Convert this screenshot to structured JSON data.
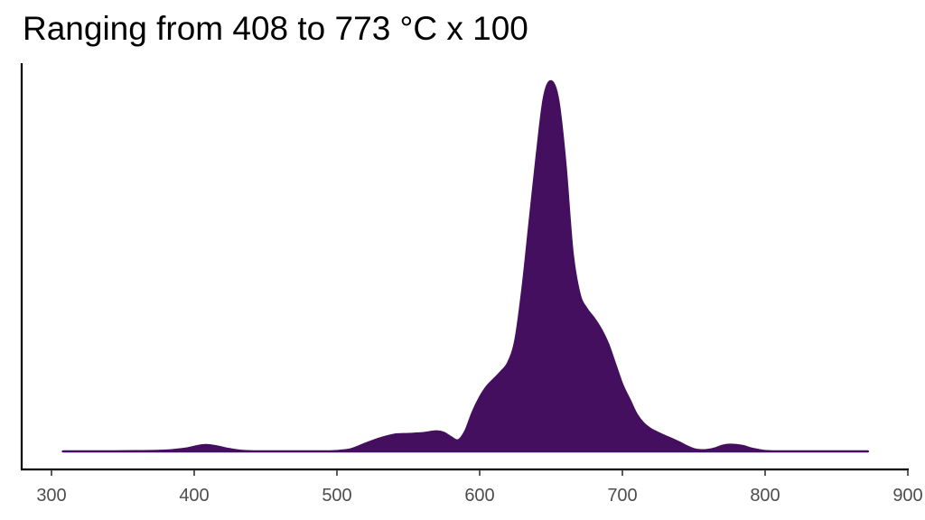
{
  "chart_data": {
    "type": "area",
    "subtype": "density",
    "title": "Ranging from 408 to 773 °C x 100",
    "xlabel": "",
    "ylabel": "",
    "xlim": [
      300,
      900
    ],
    "xticks": [
      300,
      400,
      500,
      600,
      700,
      800,
      900
    ],
    "y_axis_ticks_shown": false,
    "grid": false,
    "legend": "none",
    "fill_color": "#440F5E",
    "axis_color": "#000000",
    "series": [
      {
        "x": [
          308,
          320,
          340,
          360,
          380,
          395,
          402,
          408,
          415,
          425,
          435,
          450,
          470,
          490,
          500,
          510,
          520,
          530,
          540,
          550,
          560,
          565,
          570,
          575,
          580,
          585,
          590,
          595,
          600,
          605,
          610,
          615,
          620,
          625,
          630,
          635,
          640,
          645,
          650,
          655,
          660,
          665,
          670,
          675,
          680,
          685,
          690,
          695,
          700,
          705,
          710,
          715,
          720,
          725,
          730,
          735,
          740,
          745,
          750,
          755,
          760,
          765,
          770,
          775,
          780,
          785,
          790,
          795,
          800,
          810,
          820,
          840,
          860,
          872
        ],
        "y": [
          0.0,
          0.0,
          0.0,
          0.0005,
          0.002,
          0.008,
          0.014,
          0.017,
          0.014,
          0.006,
          0.001,
          0.0,
          0.0,
          0.0,
          0.001,
          0.006,
          0.021,
          0.035,
          0.045,
          0.047,
          0.049,
          0.052,
          0.054,
          0.05,
          0.038,
          0.03,
          0.055,
          0.105,
          0.145,
          0.175,
          0.195,
          0.215,
          0.24,
          0.3,
          0.44,
          0.62,
          0.8,
          0.955,
          1.0,
          0.95,
          0.78,
          0.54,
          0.425,
          0.385,
          0.36,
          0.33,
          0.29,
          0.235,
          0.18,
          0.14,
          0.1,
          0.075,
          0.06,
          0.05,
          0.041,
          0.033,
          0.024,
          0.014,
          0.006,
          0.003,
          0.004,
          0.008,
          0.015,
          0.018,
          0.017,
          0.014,
          0.008,
          0.004,
          0.001,
          0.0,
          0.0,
          0.0,
          0.0,
          0.0
        ]
      }
    ]
  }
}
